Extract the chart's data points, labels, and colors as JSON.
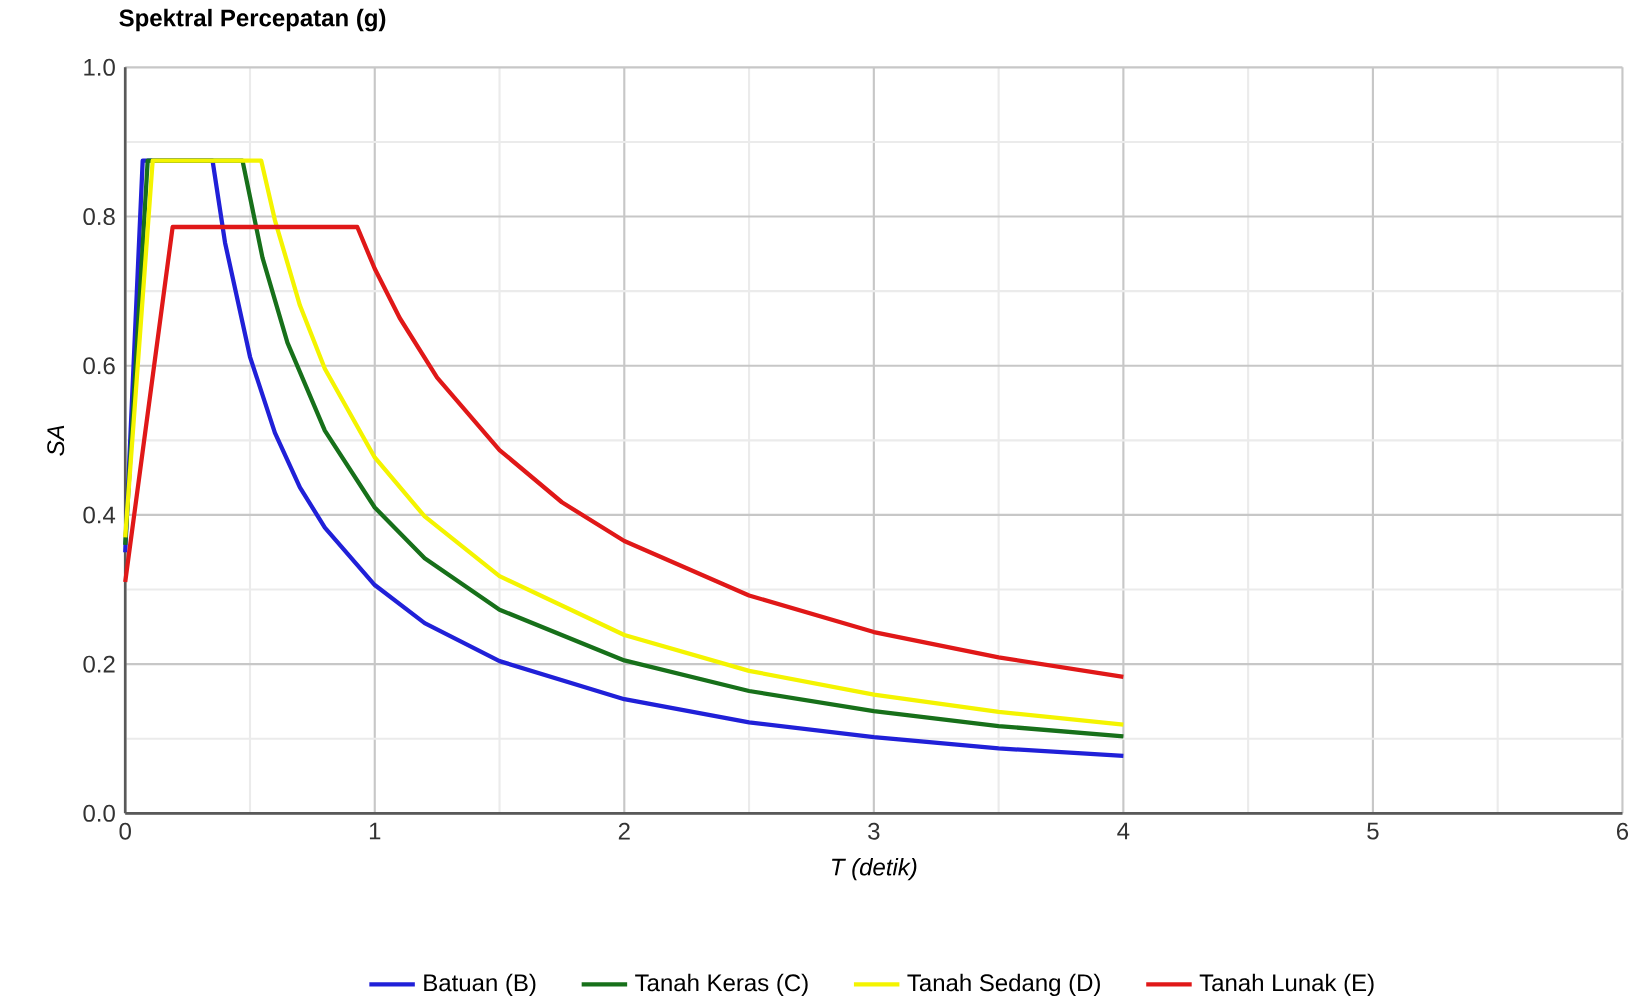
{
  "chart_data": {
    "type": "line",
    "title": "Spektral Percepatan (g)",
    "xlabel": "T (detik)",
    "ylabel": "SA",
    "xlim": [
      0,
      6
    ],
    "ylim": [
      0,
      1
    ],
    "xticks": [
      0,
      1,
      2,
      3,
      4,
      5,
      6
    ],
    "yticks": [
      {
        "value": 0,
        "label": "0.0"
      },
      0.2,
      0.4,
      0.6,
      0.8,
      {
        "value": 1,
        "label": "1.0"
      }
    ],
    "grid": true,
    "legend": "bottom",
    "marker": "none",
    "line_style": "solid",
    "series": [
      {
        "name": "Batuan (B)",
        "color": "#2020d8",
        "x": [
          0,
          0.07,
          0.35,
          0.4,
          0.5,
          0.6,
          0.7,
          0.8,
          1,
          1.2,
          1.5,
          2,
          2.5,
          3,
          3.5,
          4
        ],
        "values": [
          0.35,
          0.875,
          0.875,
          0.765,
          0.612,
          0.51,
          0.437,
          0.383,
          0.306,
          0.255,
          0.204,
          0.153,
          0.122,
          0.102,
          0.087,
          0.077
        ]
      },
      {
        "name": "Tanah Keras (C)",
        "color": "#17701a",
        "x": [
          0,
          0.09,
          0.47,
          0.55,
          0.65,
          0.8,
          1,
          1.2,
          1.5,
          2,
          2.5,
          3,
          3.5,
          4
        ],
        "values": [
          0.36,
          0.875,
          0.875,
          0.745,
          0.631,
          0.513,
          0.41,
          0.342,
          0.273,
          0.205,
          0.164,
          0.137,
          0.117,
          0.103
        ]
      },
      {
        "name": "Tanah Sedang (D)",
        "color": "#f4f400",
        "x": [
          0,
          0.11,
          0.545,
          0.6,
          0.7,
          0.8,
          1,
          1.2,
          1.5,
          2,
          2.5,
          3,
          3.5,
          4
        ],
        "values": [
          0.37,
          0.875,
          0.875,
          0.795,
          0.681,
          0.596,
          0.477,
          0.398,
          0.318,
          0.239,
          0.191,
          0.159,
          0.136,
          0.119
        ]
      },
      {
        "name": "Tanah Lunak (E)",
        "color": "#e01818",
        "x": [
          0,
          0.19,
          0.93,
          1,
          1.1,
          1.25,
          1.5,
          1.75,
          2,
          2.5,
          3,
          3.5,
          4
        ],
        "values": [
          0.31,
          0.786,
          0.786,
          0.73,
          0.664,
          0.584,
          0.487,
          0.417,
          0.365,
          0.292,
          0.243,
          0.209,
          0.183
        ]
      }
    ]
  }
}
